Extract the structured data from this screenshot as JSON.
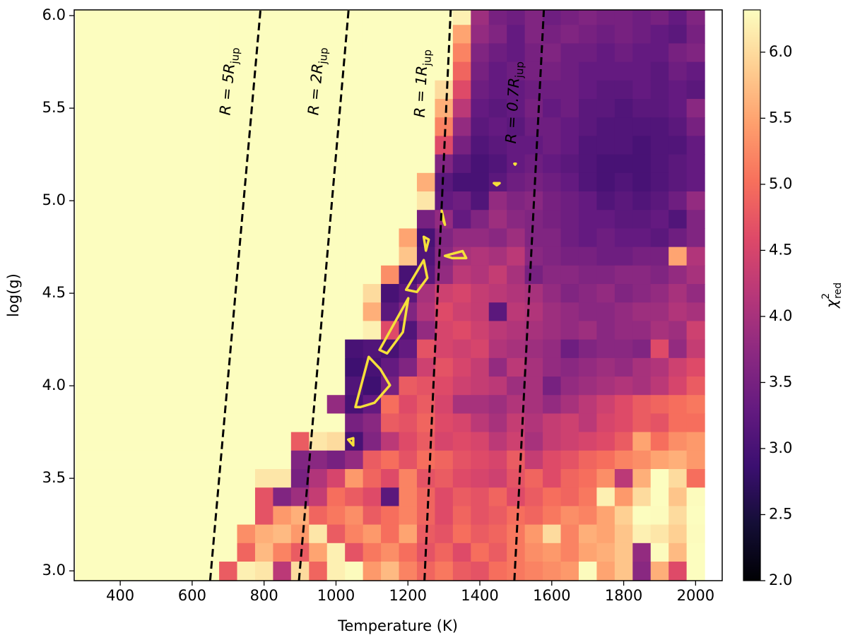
{
  "chart_data": {
    "type": "heatmap",
    "xlabel": "Temperature (K)",
    "ylabel": "log(g)",
    "xlim": [
      272,
      2074
    ],
    "ylim": [
      2.947,
      6.031
    ],
    "xticks": [
      400,
      600,
      800,
      1000,
      1200,
      1400,
      1600,
      1800,
      2000
    ],
    "yticks": [
      {
        "value": 3,
        "label": "3.0"
      },
      {
        "value": 3.5,
        "label": "3.5"
      },
      {
        "value": 4,
        "label": "4.0"
      },
      {
        "value": 4.5,
        "label": "4.5"
      },
      {
        "value": 5,
        "label": "5.0"
      },
      {
        "value": 5.5,
        "label": "5.5"
      },
      {
        "value": 6,
        "label": "6.0"
      }
    ],
    "colormap": "magma",
    "clim": [
      2.0,
      6.32
    ],
    "cticks": [
      {
        "value": 2,
        "label": "2.0"
      },
      {
        "value": 2.5,
        "label": "2.5"
      },
      {
        "value": 3,
        "label": "3.0"
      },
      {
        "value": 3.5,
        "label": "3.5"
      },
      {
        "value": 4,
        "label": "4.0"
      },
      {
        "value": 4.5,
        "label": "4.5"
      },
      {
        "value": 5,
        "label": "5.0"
      },
      {
        "value": 5.5,
        "label": "5.5"
      },
      {
        "value": 6,
        "label": "6.0"
      }
    ],
    "colorbar_label": {
      "text": "χ",
      "sup": "2",
      "sub": "red"
    },
    "x": [
      300,
      350,
      400,
      450,
      500,
      550,
      600,
      650,
      700,
      750,
      800,
      850,
      900,
      950,
      1000,
      1050,
      1100,
      1150,
      1200,
      1250,
      1300,
      1350,
      1400,
      1450,
      1500,
      1550,
      1600,
      1650,
      1700,
      1750,
      1800,
      1850,
      1900,
      1950,
      2000
    ],
    "y": [
      6.0,
      5.9,
      5.8,
      5.7,
      5.6,
      5.5,
      5.4,
      5.3,
      5.2,
      5.1,
      5.0,
      4.9,
      4.8,
      4.7,
      4.6,
      4.5,
      4.4,
      4.3,
      4.2,
      4.1,
      4.0,
      3.9,
      3.8,
      3.7,
      3.6,
      3.5,
      3.4,
      3.3,
      3.2,
      3.1,
      3.0
    ],
    "z": [
      [
        6.4,
        6.4,
        6.4,
        6.4,
        6.4,
        6.4,
        6.4,
        6.4,
        6.4,
        6.4,
        6.4,
        6.4,
        6.4,
        6.4,
        6.4,
        6.4,
        6.4,
        6.4,
        6.4,
        6.4,
        6.4,
        6.2,
        3.9,
        3.5,
        3.4,
        3.6,
        3.4,
        3.5,
        3.6,
        3.5,
        3.5,
        3.4,
        3.5,
        3.3,
        3.6
      ],
      [
        6.4,
        6.4,
        6.4,
        6.4,
        6.4,
        6.4,
        6.4,
        6.4,
        6.4,
        6.4,
        6.4,
        6.4,
        6.4,
        6.4,
        6.4,
        6.4,
        6.4,
        6.4,
        6.4,
        6.4,
        6.4,
        5.5,
        3.8,
        3.6,
        3.3,
        3.6,
        3.5,
        3.6,
        3.5,
        3.4,
        3.5,
        3.4,
        3.3,
        3.2,
        3.5
      ],
      [
        6.4,
        6.4,
        6.4,
        6.4,
        6.4,
        6.4,
        6.4,
        6.4,
        6.4,
        6.4,
        6.4,
        6.4,
        6.4,
        6.4,
        6.4,
        6.4,
        6.4,
        6.4,
        6.4,
        6.4,
        6.4,
        5.2,
        3.6,
        3.4,
        3.3,
        3.5,
        3.6,
        3.4,
        3.4,
        3.3,
        3.4,
        3.3,
        3.3,
        3.5,
        3.6
      ],
      [
        6.4,
        6.4,
        6.4,
        6.4,
        6.4,
        6.4,
        6.4,
        6.4,
        6.4,
        6.4,
        6.4,
        6.4,
        6.4,
        6.4,
        6.4,
        6.4,
        6.4,
        6.4,
        6.4,
        6.4,
        6.4,
        4.9,
        3.5,
        3.3,
        3.4,
        3.5,
        3.5,
        3.4,
        3.3,
        3.3,
        3.3,
        3.3,
        3.2,
        3.4,
        3.3
      ],
      [
        6.4,
        6.4,
        6.4,
        6.4,
        6.4,
        6.4,
        6.4,
        6.4,
        6.4,
        6.4,
        6.4,
        6.4,
        6.4,
        6.4,
        6.4,
        6.4,
        6.4,
        6.4,
        6.4,
        6.4,
        6.0,
        4.6,
        3.4,
        3.3,
        3.3,
        3.4,
        3.4,
        3.4,
        3.3,
        3.2,
        3.2,
        3.3,
        3.2,
        3.3,
        3.2
      ],
      [
        6.4,
        6.4,
        6.4,
        6.4,
        6.4,
        6.4,
        6.4,
        6.4,
        6.4,
        6.4,
        6.4,
        6.4,
        6.4,
        6.4,
        6.4,
        6.4,
        6.4,
        6.4,
        6.4,
        6.4,
        5.6,
        4.2,
        3.3,
        3.2,
        3.3,
        3.5,
        3.3,
        3.4,
        3.2,
        3.2,
        3.1,
        3.2,
        3.2,
        3.3,
        3.7
      ],
      [
        6.4,
        6.4,
        6.4,
        6.4,
        6.4,
        6.4,
        6.4,
        6.4,
        6.4,
        6.4,
        6.4,
        6.4,
        6.4,
        6.4,
        6.4,
        6.4,
        6.4,
        6.4,
        6.4,
        6.4,
        5.2,
        3.8,
        3.2,
        3.3,
        3.2,
        3.4,
        3.4,
        3.3,
        3.2,
        3.1,
        3.1,
        3.1,
        3.1,
        3.2,
        3.5
      ],
      [
        6.4,
        6.4,
        6.4,
        6.4,
        6.4,
        6.4,
        6.4,
        6.4,
        6.4,
        6.4,
        6.4,
        6.4,
        6.4,
        6.4,
        6.4,
        6.4,
        6.4,
        6.4,
        6.4,
        6.4,
        4.6,
        3.5,
        3.1,
        3.2,
        3.3,
        3.3,
        3.4,
        3.3,
        3.1,
        3.1,
        3.1,
        3.0,
        3.1,
        3.1,
        3.3
      ],
      [
        6.4,
        6.4,
        6.4,
        6.4,
        6.4,
        6.4,
        6.4,
        6.4,
        6.4,
        6.4,
        6.4,
        6.4,
        6.4,
        6.4,
        6.4,
        6.4,
        6.4,
        6.4,
        6.4,
        6.4,
        3.6,
        3.2,
        3.0,
        3.1,
        3.3,
        3.4,
        3.3,
        3.2,
        3.1,
        3.0,
        3.0,
        3.0,
        3.1,
        3.2,
        3.3
      ],
      [
        6.4,
        6.4,
        6.4,
        6.4,
        6.4,
        6.4,
        6.4,
        6.4,
        6.4,
        6.4,
        6.4,
        6.4,
        6.4,
        6.4,
        6.4,
        6.4,
        6.4,
        6.4,
        6.4,
        5.6,
        3.2,
        3.0,
        3.0,
        3.2,
        3.4,
        3.5,
        3.4,
        3.3,
        3.1,
        3.0,
        3.1,
        3.0,
        3.1,
        3.2,
        3.3
      ],
      [
        6.4,
        6.4,
        6.4,
        6.4,
        6.4,
        6.4,
        6.4,
        6.4,
        6.4,
        6.4,
        6.4,
        6.4,
        6.4,
        6.4,
        6.4,
        6.4,
        6.4,
        6.4,
        6.4,
        6.1,
        3.3,
        3.4,
        3.1,
        3.8,
        3.6,
        3.7,
        3.5,
        3.4,
        3.3,
        3.1,
        3.2,
        3.1,
        3.2,
        3.4,
        3.8
      ],
      [
        6.4,
        6.4,
        6.4,
        6.4,
        6.4,
        6.4,
        6.4,
        6.4,
        6.4,
        6.4,
        6.4,
        6.4,
        6.4,
        6.4,
        6.4,
        6.4,
        6.4,
        6.4,
        6.4,
        3.5,
        3.8,
        3.3,
        3.6,
        3.9,
        3.7,
        3.6,
        3.5,
        3.4,
        3.3,
        3.3,
        3.2,
        3.2,
        3.3,
        3.1,
        3.6
      ],
      [
        6.4,
        6.4,
        6.4,
        6.4,
        6.4,
        6.4,
        6.4,
        6.4,
        6.4,
        6.4,
        6.4,
        6.4,
        6.4,
        6.4,
        6.4,
        6.4,
        6.4,
        6.4,
        5.5,
        3.0,
        3.6,
        3.8,
        3.8,
        3.7,
        3.9,
        3.6,
        3.6,
        3.4,
        3.3,
        3.4,
        3.3,
        3.3,
        3.2,
        3.4,
        3.6
      ],
      [
        6.4,
        6.4,
        6.4,
        6.4,
        6.4,
        6.4,
        6.4,
        6.4,
        6.4,
        6.4,
        6.4,
        6.4,
        6.4,
        6.4,
        6.4,
        6.4,
        6.4,
        6.4,
        5.8,
        3.1,
        3.7,
        4.0,
        4.1,
        4.0,
        4.2,
        3.7,
        3.6,
        3.5,
        3.5,
        3.4,
        3.4,
        3.5,
        3.5,
        5.5,
        4.1
      ],
      [
        6.4,
        6.4,
        6.4,
        6.4,
        6.4,
        6.4,
        6.4,
        6.4,
        6.4,
        6.4,
        6.4,
        6.4,
        6.4,
        6.4,
        6.4,
        6.4,
        6.4,
        5.3,
        3.0,
        3.2,
        3.8,
        4.2,
        4.1,
        4.3,
        4.0,
        3.5,
        3.7,
        3.7,
        3.6,
        3.6,
        3.7,
        3.7,
        3.6,
        3.8,
        4.0
      ],
      [
        6.4,
        6.4,
        6.4,
        6.4,
        6.4,
        6.4,
        6.4,
        6.4,
        6.4,
        6.4,
        6.4,
        6.4,
        6.4,
        6.4,
        6.4,
        6.4,
        6.0,
        3.0,
        3.2,
        4.0,
        4.4,
        4.5,
        4.3,
        4.2,
        4.1,
        4.0,
        3.8,
        3.6,
        3.7,
        3.8,
        3.6,
        3.7,
        3.8,
        4.0,
        3.8
      ],
      [
        6.4,
        6.4,
        6.4,
        6.4,
        6.4,
        6.4,
        6.4,
        6.4,
        6.4,
        6.4,
        6.4,
        6.4,
        6.4,
        6.4,
        6.4,
        6.4,
        5.6,
        3.2,
        3.6,
        4.1,
        4.6,
        4.4,
        4.3,
        3.2,
        4.2,
        4.1,
        3.9,
        3.8,
        3.7,
        3.7,
        3.8,
        3.9,
        3.9,
        4.1,
        4.0
      ],
      [
        6.4,
        6.4,
        6.4,
        6.4,
        6.4,
        6.4,
        6.4,
        6.4,
        6.4,
        6.4,
        6.4,
        6.4,
        6.4,
        6.4,
        6.4,
        6.4,
        6.2,
        4.6,
        3.1,
        3.8,
        4.5,
        4.6,
        4.4,
        4.2,
        4.1,
        4.0,
        3.9,
        3.8,
        3.9,
        3.7,
        3.8,
        3.8,
        4.0,
        3.9,
        4.4
      ],
      [
        6.4,
        6.4,
        6.4,
        6.4,
        6.4,
        6.4,
        6.4,
        6.4,
        6.4,
        6.4,
        6.4,
        6.4,
        6.4,
        6.4,
        6.4,
        3.0,
        3.1,
        3.0,
        3.3,
        4.7,
        4.5,
        4.4,
        4.5,
        4.1,
        4.0,
        3.9,
        3.8,
        3.4,
        3.6,
        3.7,
        3.7,
        3.6,
        4.6,
        3.8,
        4.3
      ],
      [
        6.4,
        6.4,
        6.4,
        6.4,
        6.4,
        6.4,
        6.4,
        6.4,
        6.4,
        6.4,
        6.4,
        6.4,
        6.4,
        6.4,
        6.4,
        2.9,
        3.0,
        3.3,
        3.6,
        4.4,
        4.7,
        4.5,
        4.3,
        3.8,
        4.2,
        4.0,
        3.8,
        3.7,
        3.8,
        3.9,
        3.8,
        4.0,
        4.1,
        4.4,
        4.6
      ],
      [
        6.4,
        6.4,
        6.4,
        6.4,
        6.4,
        6.4,
        6.4,
        6.4,
        6.4,
        6.4,
        6.4,
        6.4,
        6.4,
        6.4,
        6.4,
        3.1,
        2.9,
        3.5,
        4.8,
        4.7,
        4.6,
        4.4,
        4.3,
        4.2,
        3.9,
        4.0,
        3.5,
        3.8,
        3.9,
        4.0,
        4.1,
        4.0,
        4.2,
        4.5,
        4.8
      ],
      [
        6.4,
        6.4,
        6.4,
        6.4,
        6.4,
        6.4,
        6.4,
        6.4,
        6.4,
        6.4,
        6.4,
        6.4,
        6.4,
        6.4,
        3.8,
        3.0,
        3.3,
        5.0,
        4.6,
        4.8,
        4.5,
        4.0,
        4.0,
        3.9,
        4.1,
        4.0,
        3.8,
        4.0,
        4.2,
        4.4,
        4.6,
        4.8,
        4.9,
        5.0,
        5.1
      ],
      [
        6.4,
        6.4,
        6.4,
        6.4,
        6.4,
        6.4,
        6.4,
        6.4,
        6.4,
        6.4,
        6.4,
        6.4,
        6.4,
        6.4,
        6.4,
        3.5,
        3.7,
        4.8,
        4.7,
        4.9,
        4.6,
        4.5,
        4.2,
        4.0,
        4.3,
        4.1,
        4.3,
        4.4,
        4.2,
        4.5,
        4.6,
        4.8,
        4.7,
        5.0,
        5.0
      ],
      [
        6.4,
        6.4,
        6.4,
        6.4,
        6.4,
        6.4,
        6.4,
        6.4,
        6.4,
        6.4,
        6.4,
        6.4,
        4.8,
        6.1,
        6.0,
        3.0,
        3.6,
        4.2,
        4.6,
        4.8,
        4.5,
        4.6,
        4.5,
        4.2,
        4.4,
        4.0,
        4.3,
        4.4,
        4.5,
        4.6,
        4.8,
        5.5,
        5.0,
        5.3,
        5.4
      ],
      [
        6.4,
        6.4,
        6.4,
        6.4,
        6.4,
        6.4,
        6.4,
        6.4,
        6.4,
        6.4,
        6.4,
        6.4,
        3.6,
        3.7,
        3.5,
        3.8,
        4.8,
        5.0,
        4.7,
        5.0,
        4.9,
        4.7,
        4.6,
        4.5,
        4.8,
        4.3,
        4.6,
        4.7,
        4.9,
        5.0,
        5.2,
        5.3,
        5.5,
        5.6,
        5.4
      ],
      [
        6.4,
        6.4,
        6.4,
        6.4,
        6.4,
        6.4,
        6.4,
        6.4,
        6.4,
        6.4,
        6.1,
        6.1,
        3.5,
        4.1,
        4.5,
        5.4,
        4.9,
        4.6,
        5.2,
        4.7,
        4.8,
        4.6,
        4.5,
        4.4,
        4.7,
        4.9,
        4.6,
        4.9,
        5.0,
        5.3,
        4.2,
        5.6,
        6.4,
        6.0,
        5.0
      ],
      [
        6.4,
        6.4,
        6.4,
        6.4,
        6.4,
        6.4,
        6.4,
        6.4,
        6.4,
        6.4,
        4.7,
        3.6,
        3.9,
        4.3,
        5.0,
        4.8,
        4.6,
        3.2,
        5.2,
        4.9,
        4.6,
        4.8,
        4.7,
        4.9,
        4.6,
        4.8,
        5.0,
        4.9,
        5.1,
        6.2,
        5.4,
        6.0,
        6.4,
        5.8,
        6.3
      ],
      [
        6.4,
        6.4,
        6.4,
        6.4,
        6.4,
        6.4,
        6.4,
        6.4,
        6.4,
        6.4,
        4.7,
        5.4,
        5.6,
        4.9,
        5.1,
        5.3,
        4.8,
        5.0,
        5.2,
        4.9,
        4.6,
        4.9,
        4.7,
        4.8,
        5.0,
        4.9,
        5.1,
        5.3,
        5.2,
        5.5,
        5.9,
        6.4,
        6.3,
        6.0,
        6.4
      ],
      [
        6.4,
        6.4,
        6.4,
        6.4,
        6.4,
        6.4,
        6.4,
        6.4,
        6.4,
        5.3,
        5.6,
        5.7,
        5.4,
        6.1,
        4.8,
        5.2,
        5.4,
        5.0,
        5.5,
        4.8,
        4.7,
        5.0,
        4.8,
        4.9,
        5.1,
        5.4,
        6.0,
        5.2,
        5.6,
        5.5,
        5.8,
        6.2,
        6.1,
        5.9,
        6.3
      ],
      [
        6.4,
        6.4,
        6.4,
        6.4,
        6.4,
        6.4,
        6.4,
        6.4,
        6.4,
        4.9,
        5.7,
        5.2,
        4.8,
        5.5,
        6.2,
        4.7,
        5.1,
        5.3,
        5.0,
        4.7,
        4.9,
        4.6,
        5.0,
        4.8,
        5.1,
        5.3,
        5.4,
        5.2,
        5.5,
        5.6,
        5.8,
        3.8,
        6.3,
        5.7,
        6.4
      ],
      [
        6.4,
        6.4,
        6.4,
        6.4,
        6.4,
        6.4,
        6.4,
        6.4,
        4.8,
        6.2,
        6.1,
        4.2,
        6.0,
        4.9,
        6.2,
        6.3,
        5.4,
        5.7,
        5.2,
        4.9,
        5.1,
        4.8,
        4.7,
        5.0,
        5.1,
        5.2,
        5.3,
        5.4,
        6.3,
        5.5,
        5.8,
        3.7,
        5.6,
        4.6,
        6.4
      ]
    ],
    "lines": [
      {
        "label": "R = 5R",
        "subscript": "jup",
        "x": [
          650,
          790
        ],
        "y": [
          2.947,
          6.031
        ]
      },
      {
        "label": "R = 2R",
        "subscript": "jup",
        "x": [
          897,
          1035
        ],
        "y": [
          2.947,
          6.031
        ]
      },
      {
        "label": "R = 1R",
        "subscript": "jup",
        "x": [
          1246,
          1319
        ],
        "y": [
          2.947,
          6.031
        ]
      },
      {
        "label": "R = 0.7R",
        "subscript": "jup",
        "x": [
          1496,
          1578
        ],
        "y": [
          2.947,
          6.031
        ]
      }
    ],
    "contour_color": "#f5e03a",
    "contours": [
      {
        "x": [
          1054,
          1091,
          1123,
          1150,
          1107,
          1068
        ],
        "y": [
          3.885,
          4.156,
          4.091,
          4.003,
          3.908,
          3.885
        ]
      },
      {
        "x": [
          1121,
          1201,
          1186,
          1142
        ],
        "y": [
          4.194,
          4.473,
          4.29,
          4.175
        ]
      },
      {
        "x": [
          1195,
          1244,
          1254,
          1225
        ],
        "y": [
          4.519,
          4.679,
          4.583,
          4.507
        ]
      },
      {
        "x": [
          1244,
          1258,
          1250
        ],
        "y": [
          4.805,
          4.79,
          4.73
        ]
      },
      {
        "x": [
          1294,
          1303,
          1296
        ],
        "y": [
          4.946,
          4.87,
          4.907
        ]
      },
      {
        "x": [
          1303,
          1352,
          1362,
          1323
        ],
        "y": [
          4.702,
          4.728,
          4.69,
          4.69
        ]
      },
      {
        "x": [
          1034,
          1048,
          1048
        ],
        "y": [
          3.709,
          3.717,
          3.678
        ]
      },
      {
        "x": [
          1439,
          1455,
          1447
        ],
        "y": [
          5.095,
          5.095,
          5.083
        ]
      },
      {
        "x": [
          1496,
          1500,
          1498
        ],
        "y": [
          5.2,
          5.2,
          5.195
        ]
      }
    ]
  }
}
